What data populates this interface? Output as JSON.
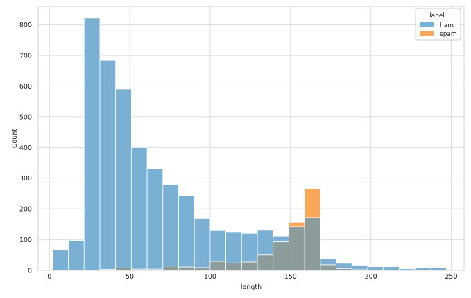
{
  "chart_data": {
    "type": "histogram",
    "xlabel": "length",
    "ylabel": "Count",
    "xlim": [
      -7,
      258
    ],
    "ylim": [
      0,
      860
    ],
    "x_ticks": [
      0,
      50,
      100,
      150,
      200,
      250
    ],
    "y_ticks": [
      0,
      100,
      200,
      300,
      400,
      500,
      600,
      700,
      800
    ],
    "grid": true,
    "legend": {
      "title": "label",
      "placement": "top-right"
    },
    "bin_edges": [
      2,
      11.8,
      21.6,
      31.4,
      41.2,
      51.0,
      60.8,
      70.6,
      80.4,
      90.2,
      100.0,
      109.8,
      119.6,
      129.4,
      139.2,
      149.0,
      158.8,
      168.6,
      178.4,
      188.2,
      198.0,
      207.8,
      217.6,
      227.4,
      237.2,
      247.0
    ],
    "series": [
      {
        "name": "ham",
        "color": "#7bb0d5",
        "values": [
          68,
          97,
          822,
          684,
          590,
          400,
          330,
          278,
          243,
          168,
          130,
          124,
          121,
          131,
          110,
          142,
          171,
          38,
          23,
          17,
          12,
          12,
          5,
          8,
          8
        ]
      },
      {
        "name": "spam",
        "color": "#f9a85a",
        "values": [
          0,
          0,
          0,
          3,
          8,
          4,
          4,
          14,
          11,
          9,
          29,
          24,
          27,
          50,
          93,
          157,
          265,
          18,
          6,
          2,
          0,
          0,
          0,
          0,
          0
        ]
      }
    ],
    "overlap_color": "#8c9c9b"
  }
}
